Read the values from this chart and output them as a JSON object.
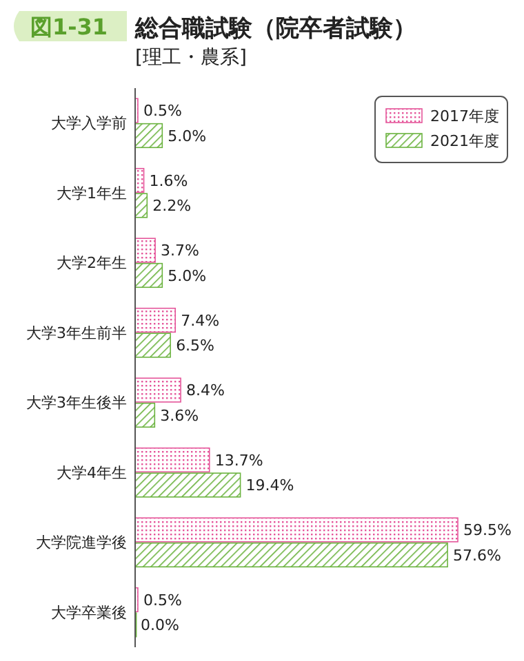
{
  "chart_data": {
    "type": "bar",
    "orientation": "horizontal",
    "title": "総合職試験（院卒者試験）",
    "subtitle": "[理工・農系]",
    "annotations": [
      "図1-31"
    ],
    "categories": [
      "大学入学前",
      "大学1年生",
      "大学2年生",
      "大学3年生前半",
      "大学3年生後半",
      "大学4年生",
      "大学院進学後",
      "大学卒業後"
    ],
    "series": [
      {
        "name": "2017年度",
        "color": "#e5559a",
        "values": [
          0.5,
          1.6,
          3.7,
          7.4,
          8.4,
          13.7,
          59.5,
          0.5
        ],
        "value_labels": [
          "0.5%",
          "1.6%",
          "3.7%",
          "7.4%",
          "8.4%",
          "13.7%",
          "59.5%",
          "0.5%"
        ]
      },
      {
        "name": "2021年度",
        "color": "#6bb33f",
        "values": [
          5.0,
          2.2,
          5.0,
          6.5,
          3.6,
          19.4,
          57.6,
          0.0
        ],
        "value_labels": [
          "5.0%",
          "2.2%",
          "5.0%",
          "6.5%",
          "3.6%",
          "19.4%",
          "57.6%",
          "0.0%"
        ]
      }
    ],
    "legend": "top right"
  }
}
